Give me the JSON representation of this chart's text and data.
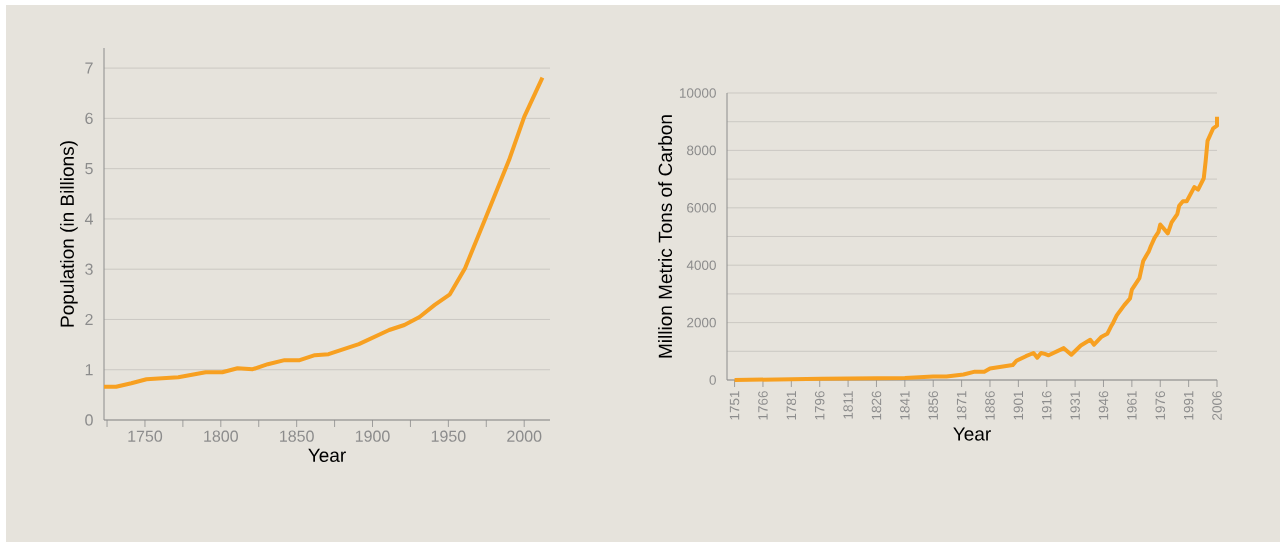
{
  "chart_data": [
    {
      "type": "line",
      "xlabel": "Year",
      "ylabel": "Population (in Billions)",
      "x": [
        1723,
        1731,
        1741,
        1751,
        1772,
        1790,
        1801,
        1811,
        1821,
        1831,
        1842,
        1852,
        1862,
        1871,
        1891,
        1911,
        1921,
        1931,
        1941,
        1951,
        1961,
        1974,
        1981,
        1990,
        2000,
        2012
      ],
      "series": [
        {
          "color": "#f7a021",
          "values": [
            0.66,
            0.66,
            0.73,
            0.81,
            0.85,
            0.95,
            0.95,
            1.03,
            1.01,
            1.11,
            1.19,
            1.19,
            1.29,
            1.31,
            1.51,
            1.79,
            1.89,
            2.05,
            2.29,
            2.5,
            3.02,
            3.98,
            4.5,
            5.17,
            6.03,
            6.81
          ]
        }
      ],
      "xlim": [
        1723,
        2017
      ],
      "ylim": [
        0,
        7.4
      ],
      "xticks": [
        {
          "value": 1725,
          "label": null
        },
        1750,
        {
          "value": 1775,
          "label": null
        },
        1800,
        {
          "value": 1825,
          "label": null
        },
        1850,
        {
          "value": 1875,
          "label": null
        },
        1900,
        {
          "value": 1925,
          "label": null
        },
        1950,
        {
          "value": 1975,
          "label": null
        },
        2000
      ],
      "yticks": [
        0,
        1,
        2,
        3,
        4,
        5,
        6,
        7
      ],
      "grid": "y"
    },
    {
      "type": "line",
      "xlabel": "Year",
      "ylabel": "Million Metric Tons of Carbon",
      "x": [
        1751,
        1797,
        1841,
        1856,
        1863,
        1872,
        1878,
        1883,
        1886,
        1898,
        1900,
        1905,
        1909,
        1911,
        1913,
        1915,
        1917,
        1925,
        1929,
        1934,
        1939,
        1941,
        1945,
        1948,
        1950,
        1951,
        1953,
        1957,
        1960,
        1961,
        1965,
        1967,
        1970,
        1971,
        1973,
        1975,
        1976,
        1980,
        1982,
        1985,
        1986,
        1988,
        1990,
        1994,
        1996,
        1999,
        2000,
        2001,
        2004,
        2006,
        2006
      ],
      "series": [
        {
          "color": "#f7a021",
          "values": [
            0,
            40,
            70,
            120,
            120,
            190,
            290,
            290,
            400,
            520,
            670,
            830,
            940,
            780,
            940,
            910,
            860,
            1110,
            880,
            1200,
            1400,
            1230,
            1510,
            1610,
            1870,
            1980,
            2250,
            2610,
            2840,
            3150,
            3550,
            4150,
            4490,
            4660,
            4950,
            5150,
            5420,
            5110,
            5490,
            5780,
            6070,
            6230,
            6230,
            6720,
            6630,
            7030,
            7630,
            8330,
            8770,
            8860,
            9170
          ]
        }
      ],
      "xlim": [
        1747,
        2006
      ],
      "ylim": [
        0,
        10000
      ],
      "xticks": [
        1751,
        1766,
        1781,
        1796,
        1811,
        1826,
        1841,
        1856,
        1871,
        1886,
        1901,
        1916,
        1931,
        1946,
        1961,
        1976,
        1991,
        2006
      ],
      "yticks": [
        0,
        {
          "value": 1000,
          "label": null
        },
        2000,
        {
          "value": 3000,
          "label": null
        },
        4000,
        {
          "value": 5000,
          "label": null
        },
        6000,
        {
          "value": 7000,
          "label": null
        },
        8000,
        {
          "value": 9000,
          "label": null
        },
        10000
      ],
      "grid": "y"
    }
  ]
}
